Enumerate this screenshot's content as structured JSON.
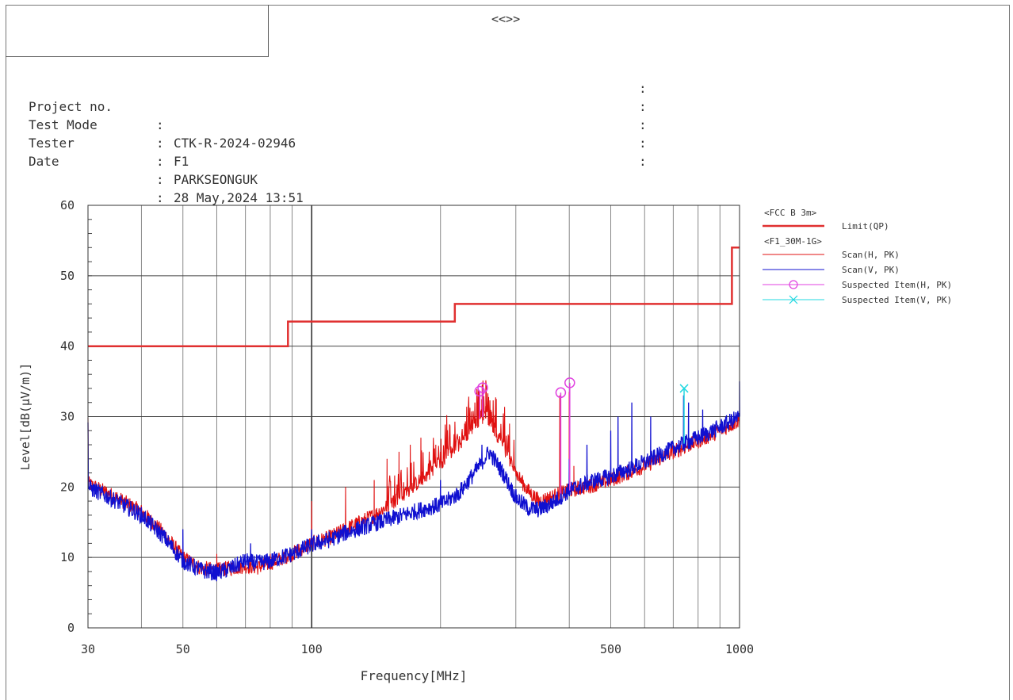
{
  "header": {
    "title": "<<>>"
  },
  "info": [
    {
      "label": "Project no.",
      "sep": ":",
      "value": "CTK-R-2024-02946"
    },
    {
      "label": "Test Mode",
      "sep": ":",
      "value": "F1"
    },
    {
      "label": "Tester",
      "sep": ":",
      "value": "PARKSEONGUK"
    },
    {
      "label": "Date",
      "sep": ":",
      "value": "28 May,2024 13:51"
    },
    {
      "label": "",
      "sep": ":",
      "value": ""
    }
  ],
  "right_colons": [
    ":",
    ":",
    ":",
    ":",
    ":"
  ],
  "colors": {
    "limit": "#e03030",
    "scan_h": "#e01010",
    "scan_v": "#1010d0",
    "suspect_h": "#e040e0",
    "suspect_v": "#20d8e0",
    "grid": "#888888"
  },
  "chart_data": {
    "type": "line",
    "x_scale": "log",
    "xlim": [
      30,
      1000
    ],
    "ylim": [
      0,
      60
    ],
    "xlabel": "Frequency[MHz]",
    "ylabel": "Level[dB(μV/m)]",
    "x_ticks": [
      30,
      50,
      100,
      500,
      1000
    ],
    "y_ticks": [
      0,
      10,
      20,
      30,
      40,
      50,
      60
    ],
    "legend": {
      "placement": "right",
      "groups": [
        {
          "title": "<FCC B 3m>",
          "entries": [
            {
              "name": "Limit(QP)",
              "key": "limit",
              "style": "thick"
            }
          ]
        },
        {
          "title": "<F1_30M-1G>",
          "entries": [
            {
              "name": "Scan(H, PK)",
              "key": "scan_h",
              "style": "line"
            },
            {
              "name": "Scan(V, PK)",
              "key": "scan_v",
              "style": "line"
            },
            {
              "name": "Suspected Item(H, PK)",
              "key": "suspect_h",
              "style": "circle"
            },
            {
              "name": "Suspected Item(V, PK)",
              "key": "suspect_v",
              "style": "cross"
            }
          ]
        }
      ]
    },
    "limit_qp": [
      [
        30,
        40
      ],
      [
        88,
        40
      ],
      [
        88,
        43.5
      ],
      [
        216,
        43.5
      ],
      [
        216,
        46
      ],
      [
        960,
        46
      ],
      [
        960,
        54
      ],
      [
        1000,
        54
      ]
    ],
    "scan_h_envelope": [
      [
        30,
        20.5
      ],
      [
        35,
        18.5
      ],
      [
        40,
        16.5
      ],
      [
        45,
        13.5
      ],
      [
        50,
        10
      ],
      [
        55,
        8.5
      ],
      [
        60,
        8.2
      ],
      [
        65,
        8.5
      ],
      [
        70,
        8.8
      ],
      [
        75,
        8.6
      ],
      [
        80,
        9.2
      ],
      [
        90,
        10.5
      ],
      [
        100,
        12
      ],
      [
        110,
        12.8
      ],
      [
        120,
        14
      ],
      [
        140,
        16
      ],
      [
        160,
        18.5
      ],
      [
        180,
        21
      ],
      [
        200,
        23.5
      ],
      [
        220,
        26
      ],
      [
        240,
        29
      ],
      [
        250,
        30
      ],
      [
        260,
        29.5
      ],
      [
        280,
        26
      ],
      [
        300,
        22
      ],
      [
        320,
        19.5
      ],
      [
        340,
        18
      ],
      [
        360,
        18.5
      ],
      [
        400,
        19.5
      ],
      [
        450,
        20.2
      ],
      [
        500,
        21
      ],
      [
        600,
        23
      ],
      [
        700,
        25
      ],
      [
        800,
        26.5
      ],
      [
        900,
        28
      ],
      [
        1000,
        29.5
      ]
    ],
    "scan_v_envelope": [
      [
        30,
        20
      ],
      [
        35,
        18
      ],
      [
        40,
        16
      ],
      [
        45,
        13
      ],
      [
        50,
        9.5
      ],
      [
        55,
        8.2
      ],
      [
        60,
        7.8
      ],
      [
        65,
        8.5
      ],
      [
        70,
        9.5
      ],
      [
        75,
        9.2
      ],
      [
        80,
        9.5
      ],
      [
        90,
        10.5
      ],
      [
        100,
        11.8
      ],
      [
        110,
        12.5
      ],
      [
        120,
        13.5
      ],
      [
        140,
        14.8
      ],
      [
        160,
        15.8
      ],
      [
        180,
        16.8
      ],
      [
        200,
        17.5
      ],
      [
        220,
        19
      ],
      [
        240,
        22
      ],
      [
        260,
        25
      ],
      [
        280,
        22
      ],
      [
        300,
        18.5
      ],
      [
        320,
        17
      ],
      [
        340,
        16.8
      ],
      [
        360,
        17.5
      ],
      [
        400,
        19.5
      ],
      [
        450,
        20.8
      ],
      [
        500,
        21.5
      ],
      [
        600,
        23.5
      ],
      [
        700,
        25.5
      ],
      [
        800,
        27
      ],
      [
        900,
        28.5
      ],
      [
        1000,
        30
      ]
    ],
    "spikes_h": [
      [
        60,
        10.5
      ],
      [
        80,
        10.5
      ],
      [
        88,
        10.5
      ],
      [
        100,
        18
      ],
      [
        120,
        20
      ],
      [
        140,
        21
      ],
      [
        150,
        24
      ],
      [
        160,
        25
      ],
      [
        170,
        26
      ],
      [
        180,
        27
      ],
      [
        195,
        26
      ],
      [
        200,
        25
      ],
      [
        240,
        30
      ],
      [
        245,
        33
      ],
      [
        250,
        32.5
      ],
      [
        255,
        31.5
      ],
      [
        270,
        32.5
      ],
      [
        290,
        29
      ],
      [
        380,
        33
      ],
      [
        400,
        33.5
      ],
      [
        410,
        23
      ]
    ],
    "spikes_v": [
      [
        50,
        14
      ],
      [
        72,
        12
      ],
      [
        100,
        14
      ],
      [
        200,
        21
      ],
      [
        250,
        26
      ],
      [
        400,
        24
      ],
      [
        440,
        26
      ],
      [
        500,
        28
      ],
      [
        520,
        30
      ],
      [
        560,
        32
      ],
      [
        620,
        30
      ],
      [
        740,
        33
      ],
      [
        760,
        32
      ],
      [
        820,
        31
      ],
      [
        1000,
        35
      ]
    ],
    "suspected_h": [
      {
        "x": 247,
        "y": 33.6
      },
      {
        "x": 251,
        "y": 34.1
      },
      {
        "x": 382,
        "y": 33.4
      },
      {
        "x": 401,
        "y": 34.8
      }
    ],
    "suspected_v": [
      {
        "x": 742,
        "y": 34.0
      }
    ]
  }
}
